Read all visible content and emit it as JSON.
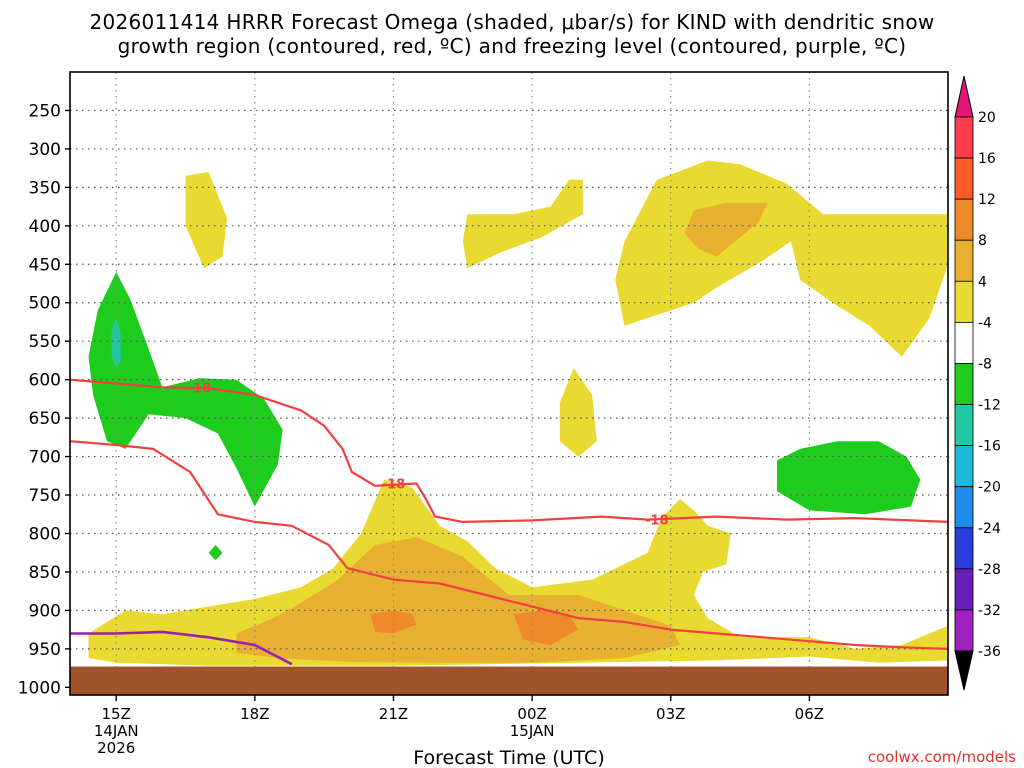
{
  "chart_data": {
    "type": "heatmap",
    "title_line1": "2026011414 HRRR Forecast Omega (shaded, μbar/s) for KIND with dendritic snow",
    "title_line2": "growth region (contoured, red, ºC) and freezing level (contoured, purple, ºC)",
    "xlabel": "Forecast Time (UTC)",
    "ylabel": "",
    "x_ticks": [
      {
        "label": "15Z",
        "sub1": "14JAN",
        "sub2": "2026"
      },
      {
        "label": "18Z",
        "sub1": "",
        "sub2": ""
      },
      {
        "label": "21Z",
        "sub1": "",
        "sub2": ""
      },
      {
        "label": "00Z",
        "sub1": "15JAN",
        "sub2": ""
      },
      {
        "label": "03Z",
        "sub1": "",
        "sub2": ""
      },
      {
        "label": "06Z",
        "sub1": "",
        "sub2": ""
      }
    ],
    "x_range_hours": [
      -1,
      18
    ],
    "y_ticks": [
      250,
      300,
      350,
      400,
      450,
      500,
      550,
      600,
      650,
      700,
      750,
      800,
      850,
      900,
      950,
      1000
    ],
    "y_range_hpa": [
      200,
      1010
    ],
    "colorbar": {
      "ticks": [
        20,
        16,
        12,
        8,
        4,
        -4,
        -8,
        -12,
        -16,
        -20,
        -24,
        -28,
        -32,
        -36
      ],
      "colors": [
        "#ff3c4a",
        "#ff5a2a",
        "#ee8a2a",
        "#e8b030",
        "#e8da30",
        "#ffffff",
        "#1ecc1e",
        "#20c8a0",
        "#20b8d8",
        "#1e8ce8",
        "#2a3cdc",
        "#6a1eb8",
        "#a020c0",
        "#a8a8a8"
      ],
      "top_arrow": "#e0187a",
      "bottom_arrow": "#000000"
    },
    "contour_labels": [
      {
        "text": "-18",
        "x_hours": 1.8,
        "p_hpa": 610
      },
      {
        "text": "-18",
        "x_hours": 6.0,
        "p_hpa": 735
      },
      {
        "text": "-18",
        "x_hours": 11.7,
        "p_hpa": 782
      }
    ],
    "dgz_top_line": [
      [
        -1,
        600
      ],
      [
        0,
        605
      ],
      [
        1,
        610
      ],
      [
        2,
        611
      ],
      [
        3,
        620
      ],
      [
        4,
        640
      ],
      [
        4.5,
        660
      ],
      [
        4.9,
        690
      ],
      [
        5.1,
        720
      ],
      [
        5.6,
        738
      ],
      [
        6.5,
        735
      ],
      [
        6.7,
        755
      ],
      [
        6.9,
        778
      ],
      [
        7.5,
        785
      ],
      [
        9,
        783
      ],
      [
        10.5,
        778
      ],
      [
        11.5,
        782
      ],
      [
        13,
        778
      ],
      [
        14.5,
        782
      ],
      [
        16,
        780
      ],
      [
        18,
        785
      ]
    ],
    "dgz_bottom_line": [
      [
        -1,
        680
      ],
      [
        0,
        685
      ],
      [
        0.8,
        690
      ],
      [
        1.6,
        720
      ],
      [
        2.2,
        775
      ],
      [
        3,
        785
      ],
      [
        3.8,
        790
      ],
      [
        4.6,
        815
      ],
      [
        5,
        845
      ],
      [
        6,
        860
      ],
      [
        7,
        865
      ],
      [
        8,
        880
      ],
      [
        9,
        895
      ],
      [
        10,
        910
      ],
      [
        11,
        915
      ],
      [
        12,
        925
      ],
      [
        13,
        930
      ],
      [
        14,
        935
      ],
      [
        15,
        940
      ],
      [
        16,
        945
      ],
      [
        17,
        948
      ],
      [
        18,
        950
      ]
    ],
    "freezing_level_line": [
      [
        -1,
        930
      ],
      [
        0,
        930
      ],
      [
        1,
        928
      ],
      [
        2,
        935
      ],
      [
        3,
        945
      ],
      [
        3.8,
        970
      ]
    ],
    "regions": [
      {
        "color": "#e8da30",
        "points": [
          [
            1.5,
            335
          ],
          [
            2,
            330
          ],
          [
            2.4,
            390
          ],
          [
            2.3,
            440
          ],
          [
            1.9,
            455
          ],
          [
            1.5,
            400
          ]
        ]
      },
      {
        "color": "#e8da30",
        "points": [
          [
            7.6,
            385
          ],
          [
            8.6,
            385
          ],
          [
            9.4,
            375
          ],
          [
            9.8,
            340
          ],
          [
            10.1,
            340
          ],
          [
            10.1,
            385
          ],
          [
            9.2,
            415
          ],
          [
            8.3,
            435
          ],
          [
            7.6,
            455
          ],
          [
            7.5,
            420
          ]
        ]
      },
      {
        "color": "#e8da30",
        "points": [
          [
            11.0,
            420
          ],
          [
            11.7,
            340
          ],
          [
            12.8,
            315
          ],
          [
            13.5,
            320
          ],
          [
            14.5,
            345
          ],
          [
            15.3,
            385
          ],
          [
            16.8,
            385
          ],
          [
            18,
            385
          ],
          [
            18,
            450
          ],
          [
            17.6,
            520
          ],
          [
            17.0,
            570
          ],
          [
            16.3,
            530
          ],
          [
            15.5,
            500
          ],
          [
            14.8,
            470
          ],
          [
            14.6,
            420
          ],
          [
            14.0,
            445
          ],
          [
            13.0,
            480
          ],
          [
            12.5,
            500
          ],
          [
            11.0,
            530
          ],
          [
            10.8,
            470
          ]
        ]
      },
      {
        "color": "#e8b030",
        "points": [
          [
            12.5,
            380
          ],
          [
            13.2,
            370
          ],
          [
            14.1,
            370
          ],
          [
            13.9,
            395
          ],
          [
            13.0,
            440
          ],
          [
            12.6,
            430
          ],
          [
            12.3,
            410
          ]
        ]
      },
      {
        "color": "#e8da30",
        "points": [
          [
            9.6,
            630
          ],
          [
            9.9,
            585
          ],
          [
            10.3,
            620
          ],
          [
            10.4,
            680
          ],
          [
            10.0,
            700
          ],
          [
            9.6,
            680
          ]
        ]
      },
      {
        "color": "#e8da30",
        "points": [
          [
            -0.6,
            930
          ],
          [
            0.2,
            900
          ],
          [
            1,
            905
          ],
          [
            2,
            895
          ],
          [
            3,
            885
          ],
          [
            4,
            870
          ],
          [
            4.7,
            845
          ],
          [
            5.3,
            800
          ],
          [
            5.8,
            730
          ],
          [
            6.4,
            740
          ],
          [
            7.0,
            790
          ],
          [
            7.6,
            810
          ],
          [
            8.2,
            845
          ],
          [
            9.0,
            870
          ],
          [
            10.3,
            860
          ],
          [
            11.5,
            825
          ],
          [
            11.8,
            780
          ],
          [
            12.2,
            755
          ],
          [
            12.5,
            770
          ],
          [
            12.8,
            790
          ],
          [
            13.3,
            800
          ],
          [
            13.2,
            840
          ],
          [
            12.7,
            850
          ],
          [
            12.5,
            880
          ],
          [
            12.8,
            910
          ],
          [
            13.5,
            935
          ],
          [
            15,
            935
          ],
          [
            16,
            950
          ],
          [
            17,
            945
          ],
          [
            18,
            920
          ],
          [
            18,
            965
          ],
          [
            16.5,
            968
          ],
          [
            15,
            960
          ],
          [
            13,
            965
          ],
          [
            10,
            968
          ],
          [
            8,
            970
          ],
          [
            6,
            972
          ],
          [
            4,
            972
          ],
          [
            2,
            972
          ],
          [
            0,
            968
          ],
          [
            -0.6,
            962
          ]
        ]
      },
      {
        "color": "#e8b030",
        "points": [
          [
            2.6,
            930
          ],
          [
            3.4,
            910
          ],
          [
            4,
            890
          ],
          [
            4.8,
            860
          ],
          [
            5.6,
            815
          ],
          [
            6.5,
            805
          ],
          [
            7.5,
            830
          ],
          [
            8.5,
            880
          ],
          [
            10,
            880
          ],
          [
            11,
            900
          ],
          [
            12,
            920
          ],
          [
            12.2,
            945
          ],
          [
            11,
            962
          ],
          [
            9,
            968
          ],
          [
            7,
            968
          ],
          [
            5,
            967
          ],
          [
            3.5,
            962
          ],
          [
            2.6,
            955
          ]
        ]
      },
      {
        "color": "#ee8a2a",
        "points": [
          [
            5.5,
            905
          ],
          [
            6.0,
            900
          ],
          [
            6.4,
            905
          ],
          [
            6.5,
            918
          ],
          [
            6.0,
            930
          ],
          [
            5.6,
            928
          ]
        ]
      },
      {
        "color": "#ee8a2a",
        "points": [
          [
            8.6,
            905
          ],
          [
            9.2,
            900
          ],
          [
            9.8,
            905
          ],
          [
            10.0,
            925
          ],
          [
            9.4,
            945
          ],
          [
            8.8,
            938
          ]
        ]
      },
      {
        "color": "#1ecc1e",
        "points": [
          [
            -0.6,
            570
          ],
          [
            -0.4,
            510
          ],
          [
            0,
            460
          ],
          [
            0.3,
            495
          ],
          [
            0.7,
            560
          ],
          [
            1.0,
            610
          ],
          [
            1.8,
            598
          ],
          [
            2.6,
            600
          ],
          [
            3.2,
            625
          ],
          [
            3.6,
            665
          ],
          [
            3.5,
            710
          ],
          [
            3.0,
            765
          ],
          [
            2.6,
            715
          ],
          [
            2.2,
            670
          ],
          [
            1.5,
            650
          ],
          [
            0.7,
            645
          ],
          [
            0.2,
            690
          ],
          [
            -0.2,
            680
          ],
          [
            -0.5,
            620
          ]
        ]
      },
      {
        "color": "#20c8a0",
        "points": [
          [
            -0.1,
            535
          ],
          [
            0,
            520
          ],
          [
            0.1,
            540
          ],
          [
            0.1,
            575
          ],
          [
            0,
            585
          ],
          [
            -0.1,
            570
          ]
        ]
      },
      {
        "color": "#1ecc1e",
        "points": [
          [
            2.0,
            825
          ],
          [
            2.15,
            815
          ],
          [
            2.3,
            825
          ],
          [
            2.15,
            835
          ]
        ]
      },
      {
        "color": "#1ecc1e",
        "points": [
          [
            14.3,
            705
          ],
          [
            14.8,
            690
          ],
          [
            15.6,
            680
          ],
          [
            16.5,
            680
          ],
          [
            17.1,
            700
          ],
          [
            17.4,
            730
          ],
          [
            17.2,
            765
          ],
          [
            16.2,
            775
          ],
          [
            15.0,
            770
          ],
          [
            14.3,
            745
          ]
        ]
      }
    ]
  },
  "credit": "coolwx.com/models"
}
